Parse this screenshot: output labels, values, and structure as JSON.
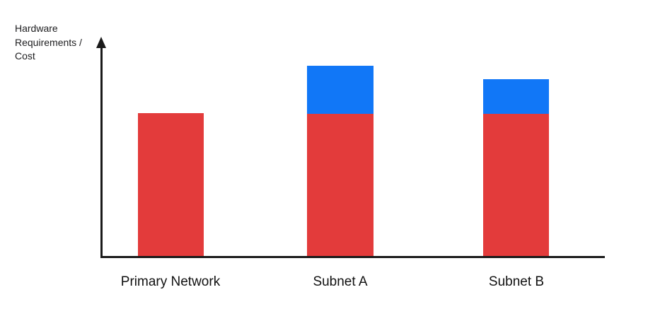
{
  "chart_data": {
    "type": "bar",
    "stacked": true,
    "title": "",
    "ylabel": "Hardware\nRequirements /\nCost",
    "xlabel": "",
    "categories": [
      "Primary Network",
      "Subnet A",
      "Subnet B"
    ],
    "series": [
      {
        "name": "red-base-segment",
        "color": "#E33B3B",
        "values": [
          202,
          201,
          201
        ]
      },
      {
        "name": "blue-additional-segment",
        "color": "#1177F7",
        "values": [
          0,
          68,
          49
        ]
      }
    ],
    "value_units": "relative height in px (axis shows no numeric scale)",
    "legend": "none",
    "grid": false,
    "axes": {
      "y_axis_arrow": true,
      "numeric_ticks": false,
      "axis_color": "#1a1a1a"
    }
  },
  "colors": {
    "red": "#E33B3B",
    "blue": "#1177F7",
    "axis": "#1a1a1a",
    "text": "#111111",
    "background": "#ffffff"
  }
}
